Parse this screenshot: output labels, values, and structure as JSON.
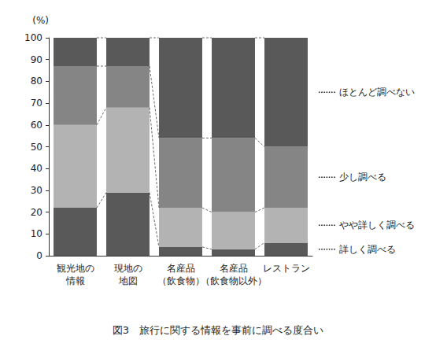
{
  "chart_data": {
    "type": "bar",
    "stacked": true,
    "title": "図3　旅行に関する情報を事前に調べる度合い",
    "ylabel": "(%)",
    "categories": [
      "観光地の\n情報",
      "現地の\n地図",
      "名産品\n（飲食物）",
      "名産品\n（飲食物以外）",
      "レストラン"
    ],
    "series": [
      {
        "name": "詳しく調べる",
        "color": "#595959",
        "values": [
          22,
          29,
          4,
          3,
          6
        ]
      },
      {
        "name": "やや詳しく調べる",
        "color": "#b3b3b3",
        "values": [
          38,
          39,
          18,
          17,
          16
        ]
      },
      {
        "name": "少し調べる",
        "color": "#858585",
        "values": [
          27,
          19,
          32,
          34,
          28
        ]
      },
      {
        "name": "ほとんど調べない",
        "color": "#595959",
        "values": [
          13,
          13,
          46,
          46,
          50
        ]
      }
    ],
    "ylim": [
      0,
      100
    ],
    "yticks": [
      0,
      10,
      20,
      30,
      40,
      50,
      60,
      70,
      80,
      90,
      100
    ],
    "grid": false,
    "legend": "right"
  }
}
